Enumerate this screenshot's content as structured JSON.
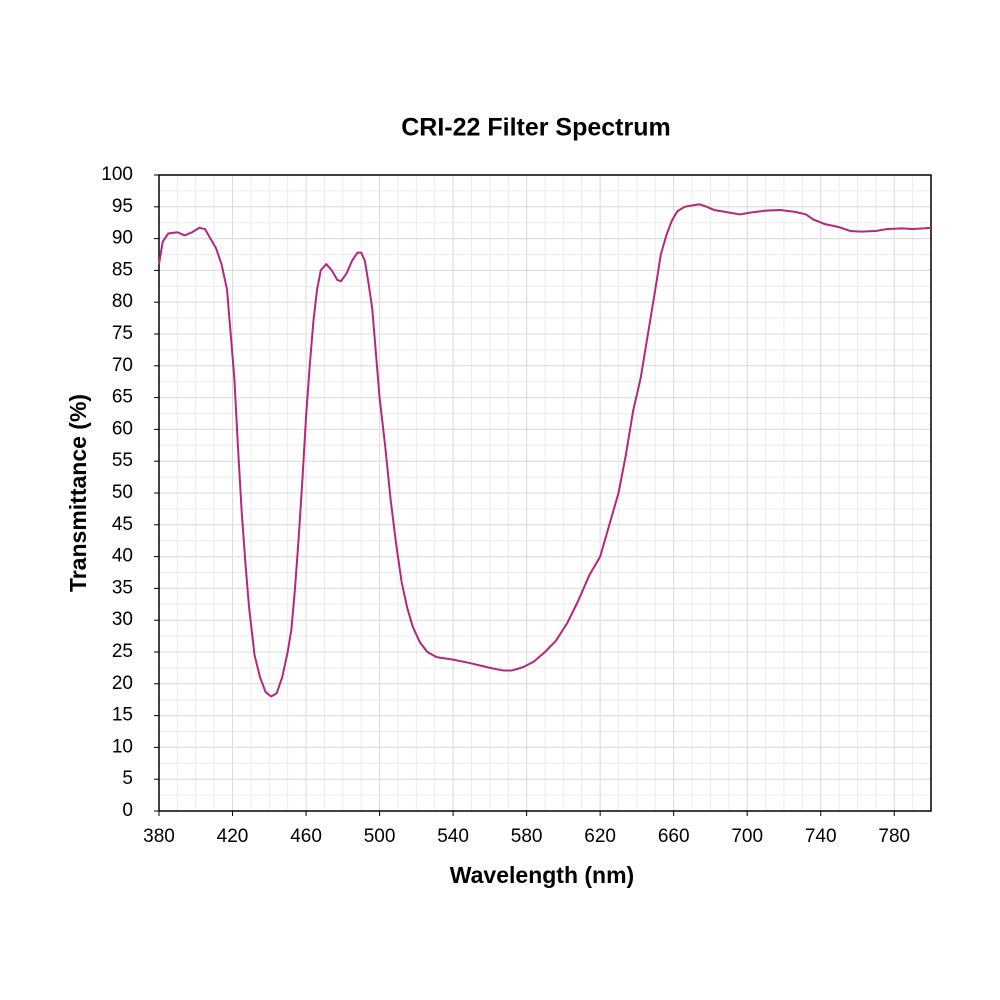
{
  "chart_data": {
    "type": "line",
    "title": "CRI-22 Filter Spectrum",
    "x_label": "Wavelength (nm)",
    "y_label": "Transmittance (%)",
    "x": [
      380,
      382,
      385,
      390,
      394,
      398,
      402,
      405,
      408,
      411,
      414,
      417,
      419,
      421,
      423,
      425,
      427,
      429,
      432,
      435,
      438,
      441,
      444,
      447,
      450,
      452,
      454,
      456,
      458,
      460,
      462,
      464,
      466,
      468,
      471,
      474,
      477,
      479,
      482,
      485,
      488,
      490,
      492,
      494,
      496,
      498,
      500,
      503,
      506,
      509,
      512,
      515,
      518,
      522,
      526,
      531,
      540,
      550,
      560,
      567,
      572,
      578,
      584,
      590,
      596,
      602,
      608,
      614,
      620,
      625,
      630,
      634,
      638,
      642,
      646,
      650,
      653,
      656,
      659,
      662,
      666,
      670,
      674,
      678,
      682,
      688,
      696,
      702,
      710,
      718,
      726,
      732,
      736,
      742,
      750,
      756,
      762,
      770,
      776,
      784,
      790,
      796,
      800
    ],
    "series": [
      {
        "name": "CRI-22",
        "color": "#b5267e",
        "values": [
          86,
          89.5,
          90.8,
          91,
          90.5,
          91,
          91.7,
          91.5,
          90,
          88.5,
          86,
          82,
          75,
          68,
          57,
          47,
          39,
          32,
          24.5,
          21,
          18.7,
          18,
          18.5,
          21,
          25,
          28.5,
          35,
          43,
          52,
          62,
          70,
          77,
          82,
          85,
          86,
          85,
          83.5,
          83.3,
          84.5,
          86.5,
          87.8,
          87.8,
          86.5,
          83,
          79,
          72,
          65,
          57.5,
          49,
          42,
          36,
          32,
          29,
          26.5,
          25,
          24.2,
          23.8,
          23.2,
          22.5,
          22.1,
          22.1,
          22.6,
          23.5,
          25,
          26.8,
          29.5,
          33,
          37,
          40,
          45,
          50,
          56,
          63,
          68,
          75,
          82,
          87.5,
          90.5,
          92.8,
          94.3,
          95,
          95.2,
          95.4,
          95,
          94.5,
          94.2,
          93.8,
          94.1,
          94.4,
          94.5,
          94.2,
          93.8,
          93,
          92.3,
          91.8,
          91.2,
          91.1,
          91.2,
          91.5,
          91.6,
          91.5,
          91.6,
          91.7
        ]
      }
    ],
    "xlim": [
      380,
      800
    ],
    "xticks": [
      380,
      420,
      460,
      500,
      540,
      580,
      620,
      660,
      700,
      740,
      780
    ],
    "ylim": [
      0,
      100
    ],
    "yticks": [
      0,
      5,
      10,
      15,
      20,
      25,
      30,
      35,
      40,
      45,
      50,
      55,
      60,
      65,
      70,
      75,
      80,
      85,
      90,
      95,
      100
    ],
    "grid": true
  }
}
